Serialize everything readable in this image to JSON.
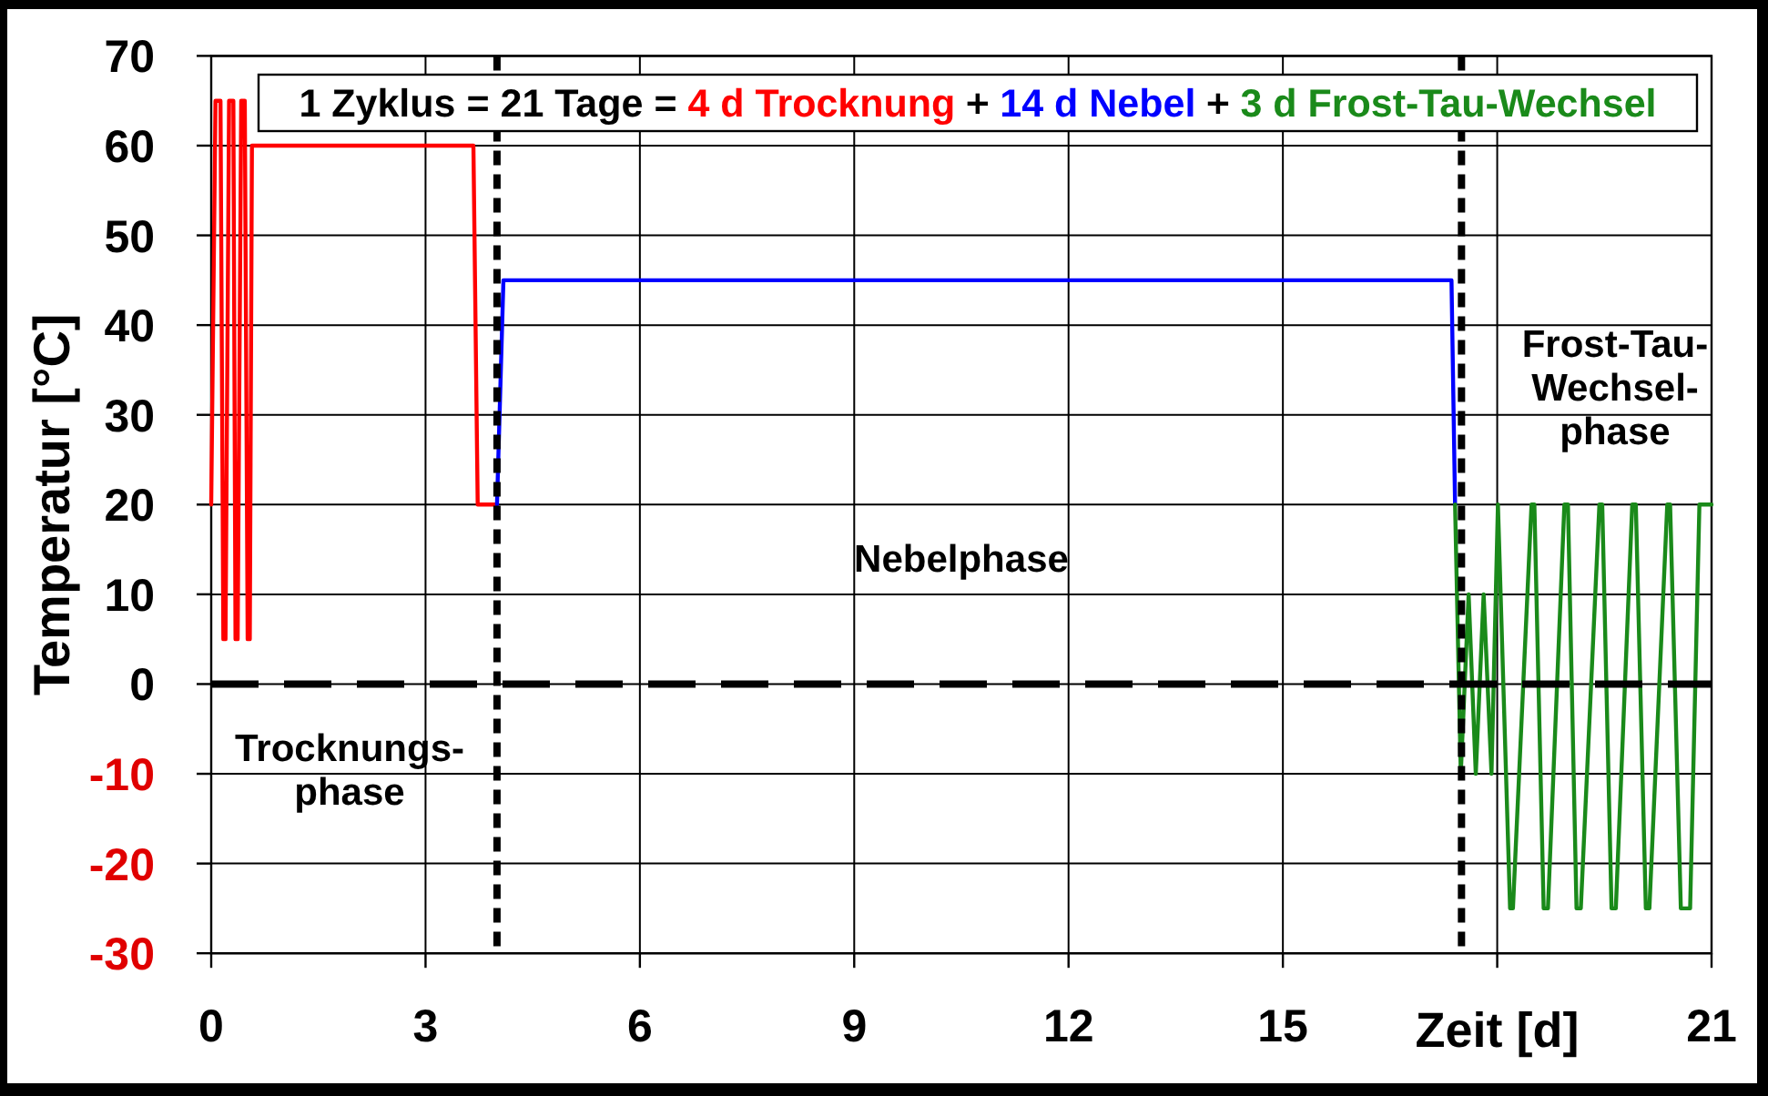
{
  "chart_data": {
    "type": "line",
    "legend_title": "1 Zyklus = 21 Tage =",
    "legend": "top",
    "xlabel": "Zeit [d]",
    "ylabel": "Temperatur [°C]",
    "xlim": [
      0,
      21
    ],
    "xticks": [
      0,
      3,
      6,
      9,
      12,
      15,
      {
        "value": 18,
        "label": null
      },
      21
    ],
    "ylim": [
      -30,
      70
    ],
    "yticks": [
      -30,
      -20,
      -10,
      0,
      10,
      20,
      30,
      40,
      50,
      60,
      70
    ],
    "grid": true,
    "series": [
      {
        "name": "4 d Trocknung",
        "color": "#ff0000",
        "x": [
          0,
          0.06,
          0.13,
          0.17,
          0.2,
          0.25,
          0.31,
          0.34,
          0.37,
          0.42,
          0.47,
          0.51,
          0.54,
          0.57,
          3.67,
          3.73,
          4.0
        ],
        "values": [
          20,
          65,
          65,
          5,
          5,
          65,
          65,
          5,
          5,
          65,
          65,
          5,
          5,
          60,
          60,
          20,
          20
        ]
      },
      {
        "name": "14 d Nebel",
        "color": "#0000ff",
        "x": [
          4.0,
          4.09,
          17.36,
          17.41
        ],
        "values": [
          20,
          45,
          45,
          20
        ]
      },
      {
        "name": "3 d Frost-Tau-Wechsel",
        "color": "#1a8a1a",
        "x": [
          17.41,
          17.49,
          17.6,
          17.7,
          17.81,
          17.92,
          18.01,
          18.18,
          18.22,
          18.48,
          18.52,
          18.65,
          18.71,
          18.94,
          18.99,
          19.11,
          19.17,
          19.43,
          19.47,
          19.6,
          19.66,
          19.89,
          19.94,
          20.08,
          20.13,
          20.38,
          20.42,
          20.57,
          20.7,
          20.83,
          21
        ],
        "values": [
          20,
          -10,
          10,
          -10,
          10,
          -10,
          20,
          -25,
          -25,
          20,
          20,
          -25,
          -25,
          20,
          20,
          -25,
          -25,
          20,
          20,
          -25,
          -25,
          20,
          20,
          -25,
          -25,
          20,
          20,
          -25,
          -25,
          20,
          20
        ]
      }
    ],
    "ref_lines": [
      {
        "axis": "y",
        "value": 0,
        "color": "#000000",
        "line_style": "dashed"
      },
      {
        "axis": "x",
        "value": 4,
        "color": "#000000",
        "line_style": "dashed"
      },
      {
        "axis": "x",
        "value": 17.5,
        "color": "#000000",
        "line_style": "dashed"
      }
    ],
    "annotations": [
      "Trocknungs-\nphase",
      "Nebelphase",
      "Frost-Tau-\nWechsel-\nphase"
    ]
  }
}
